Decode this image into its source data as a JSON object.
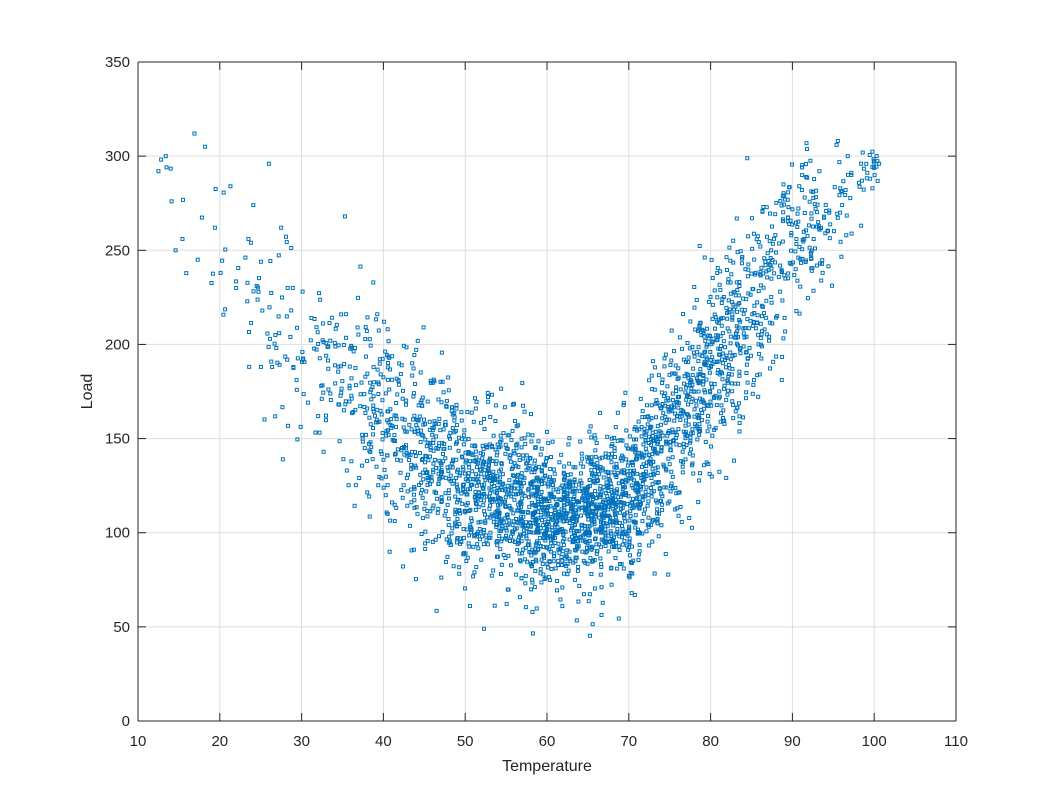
{
  "chart_data": {
    "type": "scatter",
    "title": "",
    "xlabel": "Temperature",
    "ylabel": "Load",
    "xlim": [
      10,
      110
    ],
    "ylim": [
      0,
      350
    ],
    "xticks": [
      10,
      20,
      30,
      40,
      50,
      60,
      70,
      80,
      90,
      100,
      110
    ],
    "yticks": [
      0,
      50,
      100,
      150,
      200,
      250,
      300,
      350
    ],
    "grid": true,
    "legend": "none",
    "marker": "square",
    "color": "#0072bd",
    "point_count_approx": 3000,
    "trend": {
      "description": "U-shaped relationship, minimum load near temperature 62",
      "samples_x": [
        13,
        20,
        30,
        40,
        50,
        62,
        70,
        80,
        90,
        100
      ],
      "samples_y_center": [
        285,
        245,
        195,
        160,
        125,
        105,
        118,
        185,
        250,
        295
      ],
      "samples_y_spread": [
        25,
        35,
        40,
        40,
        38,
        30,
        35,
        45,
        40,
        15
      ]
    },
    "series": [
      {
        "x": [
          12.5,
          13.4,
          14.1,
          14.6,
          16.9,
          17.3,
          18.2,
          19.4,
          20.1,
          21.3,
          22.0,
          23.5,
          24.1,
          25.2,
          26.0,
          26.8,
          27.5,
          28.3,
          29.0,
          30.1,
          31.2,
          32.4,
          33.5,
          34.6,
          35.3,
          36.1,
          37.4,
          38.5,
          39.2,
          40.3,
          41.5,
          42.6,
          43.4,
          44.7,
          45.5,
          46.8,
          47.6,
          48.5,
          49.3,
          50.4,
          51.5,
          52.3,
          52.6,
          53.1,
          54.4,
          55.6,
          56.5,
          57.4,
          58.6,
          59.5,
          60.4,
          61.5,
          62.3,
          63.4,
          64.6,
          65.5,
          66.4,
          67.5,
          68.6,
          69.4,
          70.5,
          71.6,
          72.4,
          73.5,
          74.6,
          75.5,
          76.4,
          77.3,
          78.6,
          79.5,
          80.4,
          81.5,
          82.6,
          83.5,
          84.4,
          85.5,
          86.6,
          87.4,
          88.5,
          89.6,
          90.4,
          91.5,
          92.6,
          93.3,
          94.5,
          95.4,
          96.5,
          97.2,
          98.4,
          99.5,
          100.3,
          100.6
        ],
        "y": [
          292,
          300,
          276,
          250,
          312,
          245,
          305,
          262,
          238,
          284,
          230,
          256,
          274,
          218,
          296,
          205,
          262,
          230,
          188,
          196,
          214,
          178,
          202,
          168,
          268,
          182,
          152,
          176,
          160,
          174,
          142,
          160,
          136,
          152,
          128,
          146,
          121,
          138,
          112,
          130,
          118,
          49,
          96,
          108,
          124,
          98,
          112,
          92,
          120,
          104,
          98,
          110,
          88,
          104,
          96,
          116,
          108,
          124,
          102,
          132,
          118,
          140,
          108,
          150,
          124,
          168,
          138,
          182,
          152,
          190,
          172,
          206,
          184,
          222,
          196,
          238,
          208,
          250,
          228,
          264,
          240,
          278,
          256,
          292,
          270,
          306,
          282,
          290,
          296,
          288,
          300,
          296
        ]
      }
    ]
  }
}
